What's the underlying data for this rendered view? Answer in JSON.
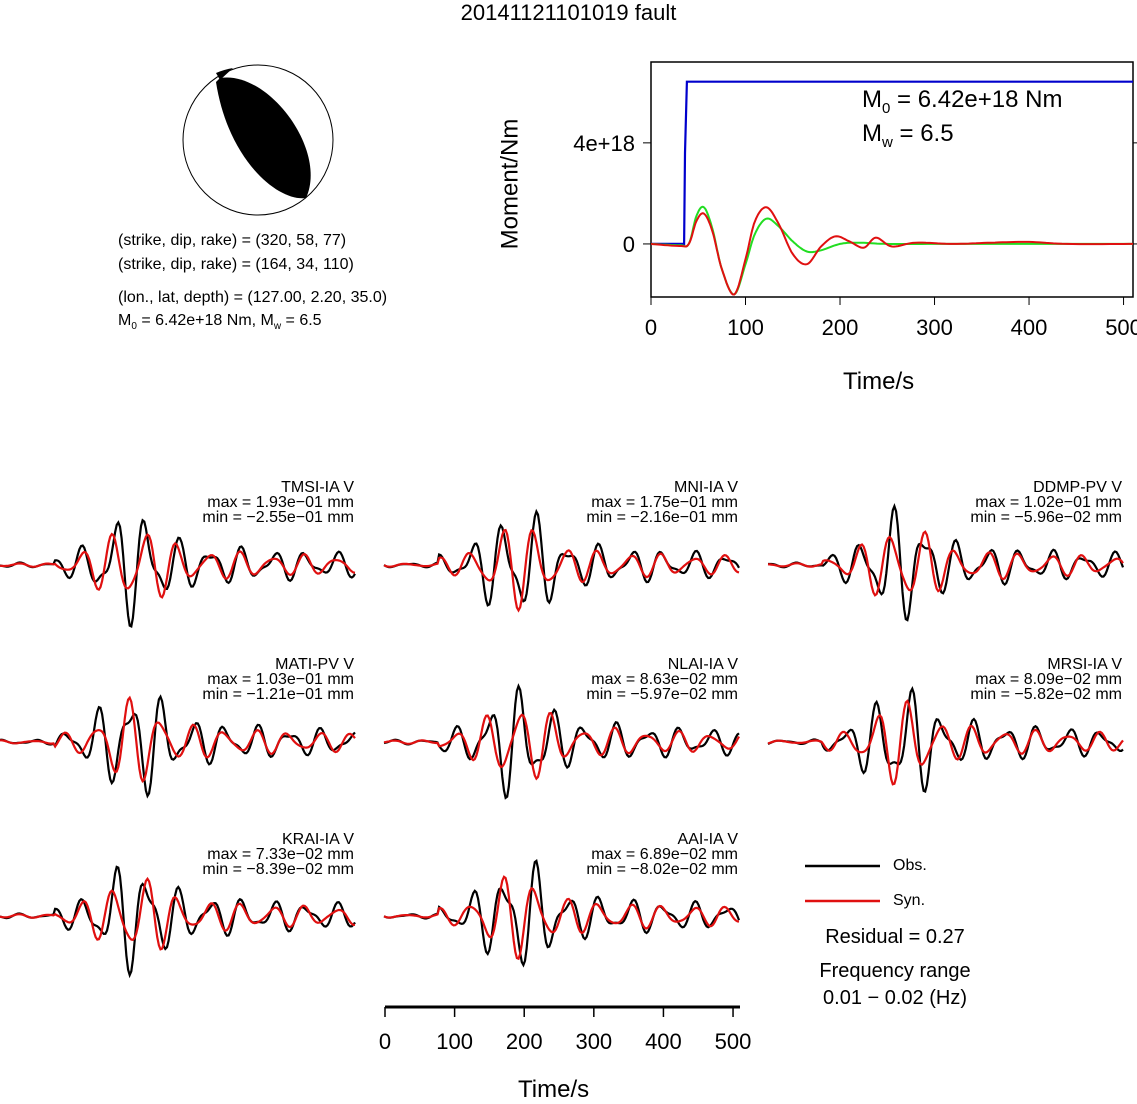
{
  "title": "20141121101019 fault",
  "mechanism": {
    "line1": "(strike, dip, rake) = (320, 58, 77)",
    "line2": "(strike, dip, rake) = (164, 34, 110)",
    "location": "(lon., lat, depth) = (127.00, 2.20, 35.0)",
    "moment_text": "= 6.42e+18 Nm, M",
    "mw_text": "= 6.5",
    "m_sym": "M",
    "sub0": "0",
    "subw": "w"
  },
  "moment_panel": {
    "m0_value": "= 6.42e+18 Nm",
    "mw_value": "= 6.5",
    "m_sym": "M",
    "sub0": "0",
    "subw": "w"
  },
  "stations": [
    {
      "name": "TMSI-IA V",
      "max": "max = 1.93e−01 mm",
      "min": "min = −2.55e−01 mm"
    },
    {
      "name": "MNI-IA V",
      "max": "max = 1.75e−01 mm",
      "min": "min = −2.16e−01 mm"
    },
    {
      "name": "DDMP-PV V",
      "max": "max = 1.02e−01 mm",
      "min": "min = −5.96e−02 mm"
    },
    {
      "name": "MATI-PV V",
      "max": "max = 1.03e−01 mm",
      "min": "min = −1.21e−01 mm"
    },
    {
      "name": "NLAI-IA V",
      "max": "max = 8.63e−02 mm",
      "min": "min = −5.97e−02 mm"
    },
    {
      "name": "MRSI-IA V",
      "max": "max = 8.09e−02 mm",
      "min": "min = −5.82e−02 mm"
    },
    {
      "name": "KRAI-IA V",
      "max": "max = 7.33e−02 mm",
      "min": "min = −8.39e−02 mm"
    },
    {
      "name": "AAI-IA V",
      "max": "max = 6.89e−02 mm",
      "min": "min = −8.02e−02 mm"
    }
  ],
  "legend": {
    "obs": "Obs.",
    "syn": "Syn."
  },
  "residual": "Residual = 0.27",
  "freq_label": "Frequency range",
  "freq_value": "0.01 − 0.02 (Hz)",
  "colors": {
    "obs": "#000000",
    "syn": "#e01010",
    "moment": "#0000cc",
    "green": "#22dd22"
  },
  "chart_data": [
    {
      "type": "line",
      "title": "",
      "xlabel": "Time/s",
      "ylabel": "Moment/Nm",
      "xlim": [
        0,
        510
      ],
      "ylim": [
        -2.1e+18,
        7.2e+18
      ],
      "xticks": [
        0,
        100,
        200,
        300,
        400,
        500
      ],
      "yticks": [
        0,
        4e+18
      ],
      "ytick_labels": [
        "0",
        "4e+18"
      ],
      "series": [
        {
          "color": "#0000cc",
          "x": [
            0,
            35,
            36,
            38,
            510
          ],
          "y": [
            0,
            0,
            3.6e+18,
            6.42e+18,
            6.42e+18
          ]
        },
        {
          "color": "#22dd22",
          "x": [
            0,
            30,
            40,
            48,
            56,
            65,
            75,
            88,
            100,
            110,
            122,
            135,
            150,
            165,
            180,
            200,
            220,
            250,
            300,
            400,
            510
          ],
          "y": [
            0,
            -5e+16,
            0,
            1.1e+18,
            1.45e+18,
            6e+17,
            -1e+18,
            -2e+18,
            -8e+17,
            4e+17,
            1e+18,
            7e+17,
            1e+17,
            -3e+17,
            -2.5e+17,
            0,
            5e+16,
            0,
            0,
            0,
            0
          ]
        },
        {
          "color": "#e01010",
          "x": [
            0,
            30,
            40,
            48,
            56,
            65,
            75,
            88,
            100,
            110,
            122,
            135,
            150,
            165,
            180,
            195,
            210,
            225,
            238,
            255,
            280,
            320,
            360,
            400,
            440,
            510
          ],
          "y": [
            0,
            -8e+16,
            0,
            9e+17,
            1.2e+18,
            5e+17,
            -1e+18,
            -2e+18,
            -6e+17,
            9e+17,
            1.45e+18,
            8e+17,
            -4e+17,
            -8e+17,
            -1e+17,
            3e+17,
            1e+17,
            -1.5e+17,
            2.5e+17,
            -1e+17,
            5e+16,
            0,
            5e+16,
            8e+16,
            0,
            0
          ]
        }
      ]
    },
    {
      "type": "line",
      "title": "",
      "xlabel": "Time/s",
      "xlim": [
        0,
        510
      ],
      "xticks": [
        0,
        100,
        200,
        300,
        400,
        500
      ],
      "note_series": "obs and syn waveforms per station (normalized amplitude)"
    }
  ]
}
